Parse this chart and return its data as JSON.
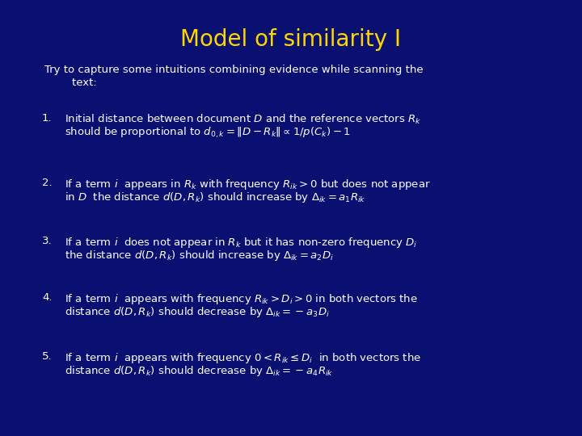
{
  "title": "Model of similarity I",
  "title_color": "#FFD700",
  "background_color": "#0A1070",
  "text_color": "#FFFFFF",
  "figsize": [
    7.2,
    5.4
  ],
  "dpi": 100,
  "intro_line1": "Try to capture some intuitions combining evidence while scanning the",
  "intro_line2": "        text:",
  "items": [
    {
      "num": "1.",
      "line1": "Initial distance between document $\\mathit{D}$ and the reference vectors $\\mathit{R}_k$",
      "line2": "should be proportional to $\\mathit{d}_{0,k} = \\|\\mathit{D} - \\mathit{R}_k\\| \\propto 1/\\mathit{p}(\\mathit{C}_k) - 1$"
    },
    {
      "num": "2.",
      "line1": "If a term $\\mathit{i}$  appears in $\\mathit{R}_k$ with frequency $\\mathit{R}_{ik} > 0$ but does not appear",
      "line2": "in $\\mathit{D}$  the distance $\\mathit{d}(\\mathit{D},\\mathit{R}_k)$ should increase by $\\Delta_{ik} = \\mathit{a}_1 \\mathit{R}_{ik}$"
    },
    {
      "num": "3.",
      "line1": "If a term $\\mathit{i}$  does not appear in $\\mathit{R}_k$ but it has non-zero frequency $\\mathit{D}_i$",
      "line2": "the distance $\\mathit{d}(\\mathit{D},\\mathit{R}_k)$ should increase by $\\Delta_{ik} = \\mathit{a}_2 \\mathit{D}_i$"
    },
    {
      "num": "4.",
      "line1": "If a term $\\mathit{i}$  appears with frequency $\\mathit{R}_{ik} > \\mathit{D}_i > 0$ in both vectors the",
      "line2": "distance $\\mathit{d}(\\mathit{D},\\mathit{R}_k)$ should decrease by $\\Delta_{ik} = -\\mathit{a}_3 \\mathit{D}_i$"
    },
    {
      "num": "5.",
      "line1": "If a term $\\mathit{i}$  appears with frequency $0 < \\mathit{R}_{ik} \\leq \\mathit{D}_i$  in both vectors the",
      "line2": "distance $\\mathit{d}(\\mathit{D},\\mathit{R}_k)$ should decrease by $\\Delta_{ik} = -\\mathit{a}_4 \\mathit{R}_{ik}$"
    }
  ]
}
